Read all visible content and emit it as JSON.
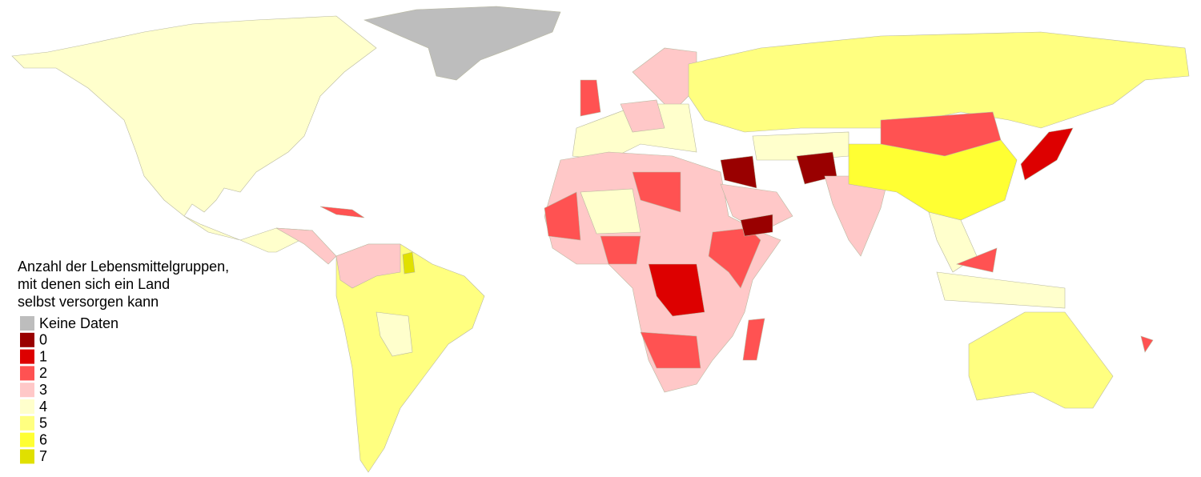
{
  "legend": {
    "title": [
      "Anzahl der Lebensmittelgruppen,",
      "mit denen sich ein Land",
      "selbst versorgen kann"
    ],
    "items": [
      {
        "label": "Keine Daten",
        "color": "#bdbdbd"
      },
      {
        "label": "0",
        "color": "#990000"
      },
      {
        "label": "1",
        "color": "#dd0000"
      },
      {
        "label": "2",
        "color": "#ff5252"
      },
      {
        "label": "3",
        "color": "#ffc8c8"
      },
      {
        "label": "4",
        "color": "#ffffcc"
      },
      {
        "label": "5",
        "color": "#ffff80"
      },
      {
        "label": "6",
        "color": "#ffff33"
      },
      {
        "label": "7",
        "color": "#e0e000"
      }
    ]
  }
}
